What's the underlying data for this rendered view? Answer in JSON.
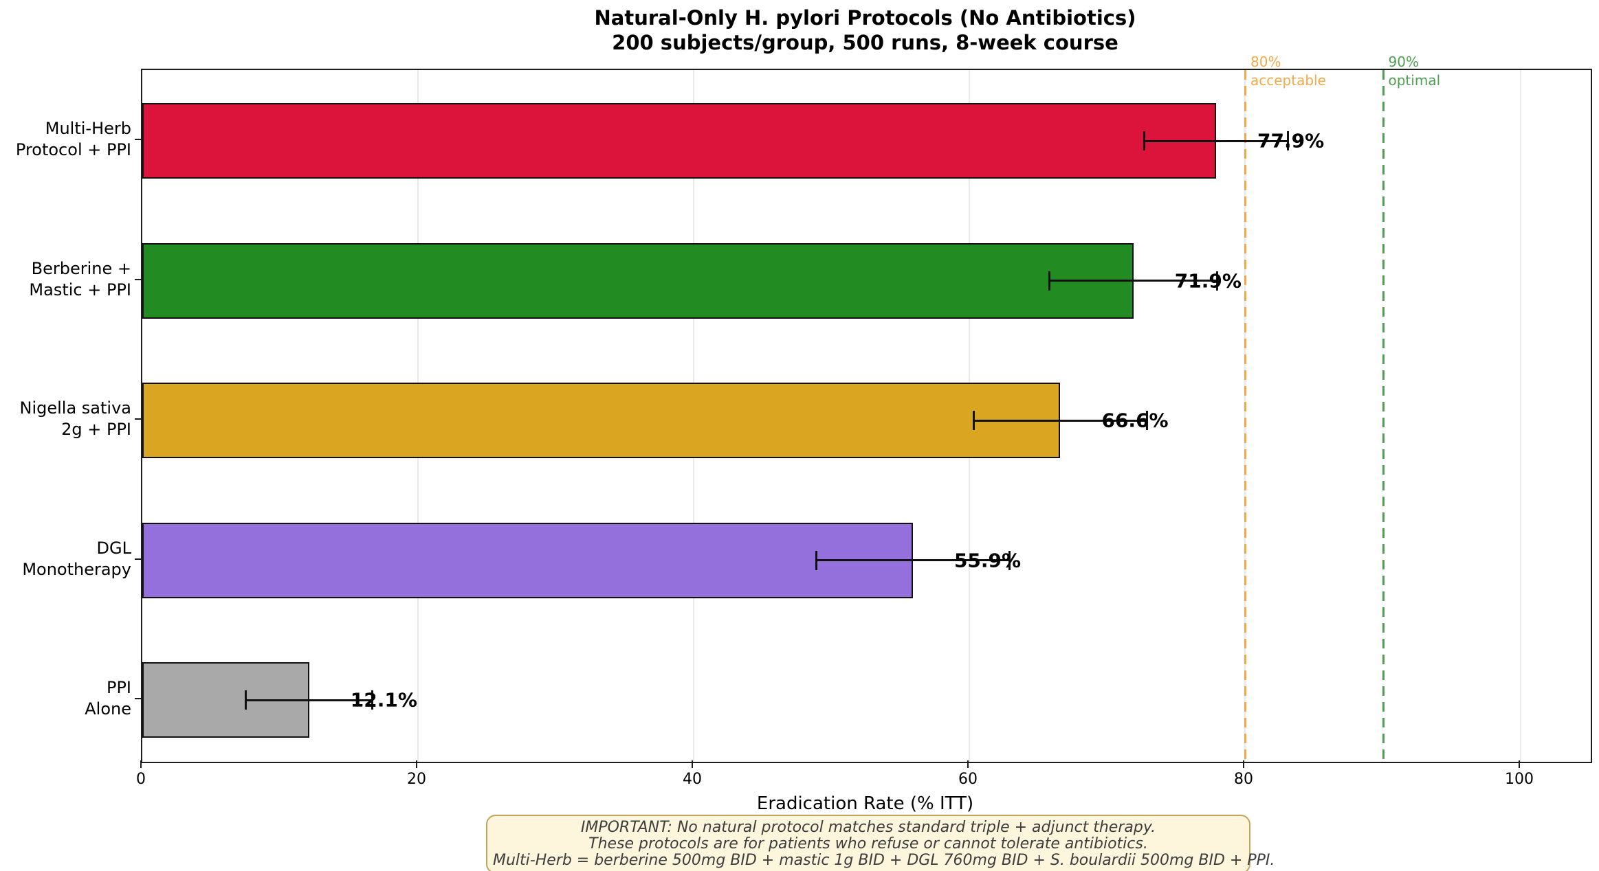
{
  "title": {
    "line1": "Natural-Only H. pylori Protocols (No Antibiotics)",
    "line2": "200 subjects/group, 500 runs, 8-week course"
  },
  "chart_data": {
    "type": "bar",
    "orientation": "horizontal",
    "title": "Natural-Only H. pylori Protocols (No Antibiotics)",
    "subtitle": "200 subjects/group, 500 runs, 8-week course",
    "xlabel": "Eradication Rate (% ITT)",
    "xlim": [
      0,
      105
    ],
    "xticks": [
      0,
      20,
      40,
      60,
      80,
      100
    ],
    "grid": true,
    "bars": [
      {
        "category_lines": [
          "Multi-Herb",
          "Protocol + PPI"
        ],
        "value": 77.9,
        "error": 5.2,
        "value_label": "77.9%",
        "color": "#DC143C"
      },
      {
        "category_lines": [
          "Berberine +",
          "Mastic + PPI"
        ],
        "value": 71.9,
        "error": 6.1,
        "value_label": "71.9%",
        "color": "#228B22"
      },
      {
        "category_lines": [
          "Nigella sativa",
          "2g + PPI"
        ],
        "value": 66.6,
        "error": 6.3,
        "value_label": "66.6%",
        "color": "#DAA520"
      },
      {
        "category_lines": [
          "DGL",
          "Monotherapy"
        ],
        "value": 55.9,
        "error": 7.0,
        "value_label": "55.9%",
        "color": "#9370DB"
      },
      {
        "category_lines": [
          "PPI",
          "Alone"
        ],
        "value": 12.1,
        "error": 4.6,
        "value_label": "12.1%",
        "color": "#A9A9A9"
      }
    ],
    "thresholds": [
      {
        "value": 80,
        "label_line1": "80%",
        "label_line2": "acceptable",
        "color": "#F2A94A"
      },
      {
        "value": 90,
        "label_line1": "90%",
        "label_line2": "optimal",
        "color": "#4FA052"
      }
    ]
  },
  "note": {
    "lines": [
      "IMPORTANT: No natural protocol matches standard triple + adjunct therapy.",
      "These protocols are for patients who refuse or cannot tolerate antibiotics.",
      "Multi-Herb = berberine 500mg BID + mastic 1g BID + DGL 760mg BID + S. boulardii 500mg BID + PPI."
    ]
  },
  "colors": {
    "grid": "#e9e9e9",
    "axis": "#1c1c1c",
    "note_background": "#FDF5DC",
    "note_border": "#C2A45E",
    "note_text": "#3d3d3d"
  }
}
